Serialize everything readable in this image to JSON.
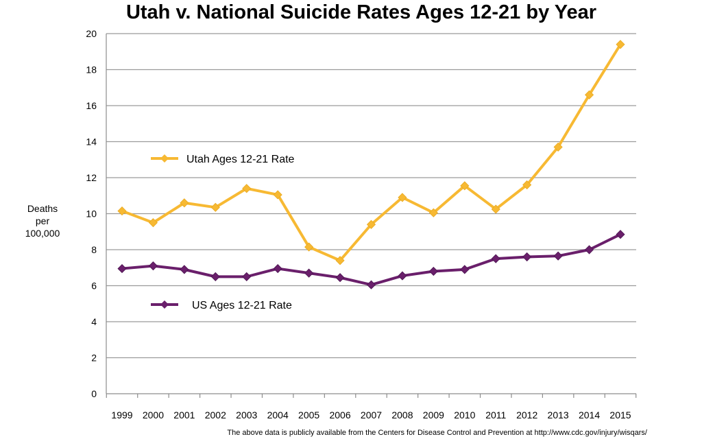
{
  "chart_data": {
    "type": "line",
    "title": "Utah v. National Suicide Rates Ages 12-21 by Year",
    "ylabel_lines": [
      "Deaths",
      "per",
      "100,000"
    ],
    "xlabel": "",
    "x": [
      "1999",
      "2000",
      "2001",
      "2002",
      "2003",
      "2004",
      "2005",
      "2006",
      "2007",
      "2008",
      "2009",
      "2010",
      "2011",
      "2012",
      "2013",
      "2014",
      "2015"
    ],
    "ylim": [
      0,
      20
    ],
    "yticks": [
      0,
      2,
      4,
      6,
      8,
      10,
      12,
      14,
      16,
      18,
      20
    ],
    "grid": "horizontal",
    "series": [
      {
        "name": "Utah Ages 12-21 Rate",
        "color": "#f7b933",
        "marker": "diamond",
        "values": [
          10.15,
          9.5,
          10.6,
          10.35,
          11.4,
          11.05,
          8.15,
          7.4,
          9.4,
          10.9,
          10.05,
          11.55,
          10.25,
          11.6,
          13.7,
          16.6,
          19.4
        ]
      },
      {
        "name": "US Ages 12-21 Rate",
        "color": "#6a1f6b",
        "marker": "diamond",
        "values": [
          6.95,
          7.1,
          6.9,
          6.5,
          6.5,
          6.95,
          6.7,
          6.45,
          6.05,
          6.55,
          6.8,
          6.9,
          7.5,
          7.6,
          7.65,
          8.0,
          8.85
        ]
      }
    ]
  },
  "footnote": "The above data is publicly available from the Centers for Disease Control and Prevention at http://www.cdc.gov/injury/wisqars/"
}
